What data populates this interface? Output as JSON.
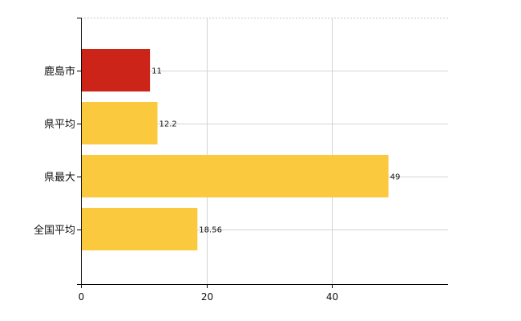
{
  "chart_data": {
    "type": "bar",
    "orientation": "horizontal",
    "categories": [
      "鹿島市",
      "県平均",
      "県最大",
      "全国平均"
    ],
    "values": [
      11,
      12.2,
      49,
      18.56
    ],
    "data_labels": [
      "11",
      "12.2",
      "49",
      "18.56"
    ],
    "bar_colors": [
      "#cc2418",
      "#fbc93d",
      "#fbc93d",
      "#fbc93d"
    ],
    "xlim": [
      0,
      58.5
    ],
    "x_ticks": [
      0,
      20,
      40
    ],
    "x_tick_labels": [
      "0",
      "20",
      "40"
    ],
    "grid": true,
    "title": "",
    "xlabel": "",
    "ylabel": ""
  }
}
